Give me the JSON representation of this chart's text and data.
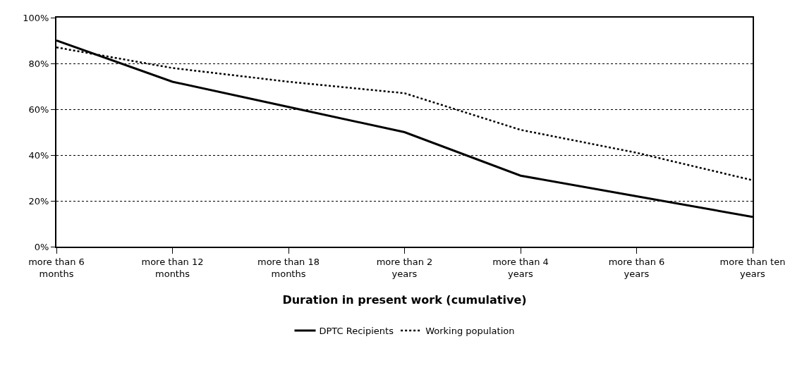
{
  "chart_data": {
    "type": "line",
    "xlabel": "Duration in present work (cumulative)",
    "categories": [
      "more than 6 months",
      "more than 12 months",
      "more than 18 months",
      "more than 2 years",
      "more than 4 years",
      "more than 6 years",
      "more than ten years"
    ],
    "series": [
      {
        "name": "DPTC Recipients",
        "color": "#000000",
        "line_style": "solid",
        "values": [
          90,
          72,
          61,
          50,
          31,
          22,
          13
        ]
      },
      {
        "name": "Working population",
        "color": "#000000",
        "line_style": "dotted",
        "values": [
          87,
          78,
          72,
          67,
          51,
          41,
          29
        ]
      }
    ],
    "ylim": [
      0,
      100
    ],
    "yticks": [
      {
        "value": 0,
        "label": "0%"
      },
      {
        "value": 20,
        "label": "20%"
      },
      {
        "value": 40,
        "label": "40%"
      },
      {
        "value": 60,
        "label": "60%"
      },
      {
        "value": 80,
        "label": "80%"
      },
      {
        "value": 100,
        "label": "100%"
      }
    ],
    "grid": "y",
    "legend": "bottom",
    "marker": "none"
  }
}
